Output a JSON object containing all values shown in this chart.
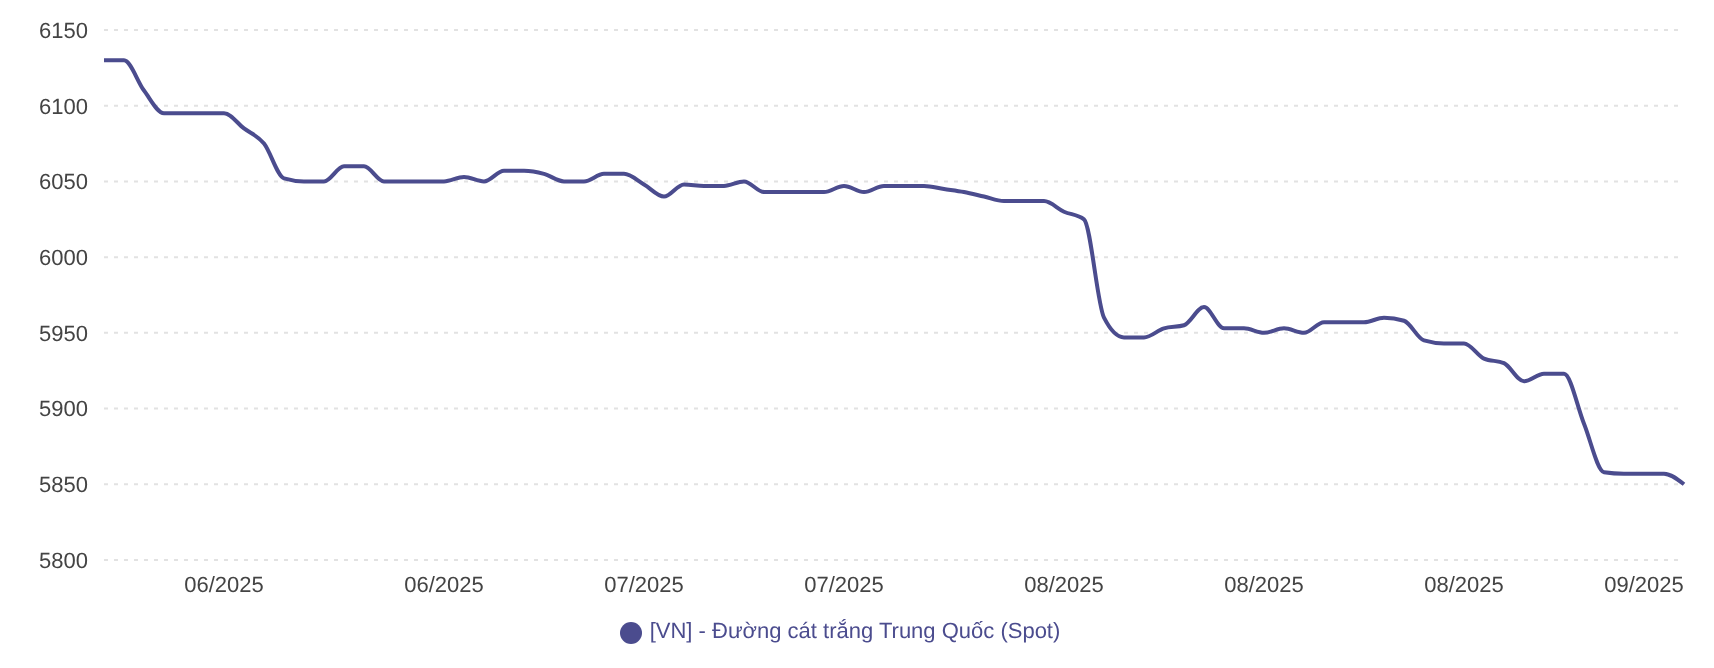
{
  "chart_data": {
    "type": "line",
    "categories": [
      null,
      null,
      null,
      null,
      null,
      null,
      "06/2025",
      null,
      null,
      null,
      null,
      null,
      null,
      null,
      null,
      null,
      null,
      "06/2025",
      null,
      null,
      null,
      null,
      null,
      null,
      null,
      null,
      null,
      "07/2025",
      null,
      null,
      null,
      null,
      null,
      null,
      null,
      null,
      null,
      "07/2025",
      null,
      null,
      null,
      null,
      null,
      null,
      null,
      null,
      null,
      null,
      "08/2025",
      null,
      null,
      null,
      null,
      null,
      null,
      null,
      null,
      null,
      "08/2025",
      null,
      null,
      null,
      null,
      null,
      null,
      null,
      null,
      null,
      "08/2025",
      null,
      null,
      null,
      null,
      null,
      null,
      null,
      null,
      "09/2025",
      null,
      null
    ],
    "series": [
      {
        "name": "[VN] - Đường cát trắng Trung Quốc (Spot)",
        "color": "#4b4c8e",
        "values": [
          6130,
          6130,
          6110,
          6095,
          6095,
          6095,
          6095,
          6085,
          6075,
          6052,
          6050,
          6050,
          6060,
          6060,
          6050,
          6050,
          6050,
          6050,
          6053,
          6050,
          6057,
          6057,
          6055,
          6050,
          6050,
          6055,
          6055,
          6048,
          6040,
          6048,
          6047,
          6047,
          6050,
          6043,
          6043,
          6043,
          6043,
          6047,
          6043,
          6047,
          6047,
          6047,
          6045,
          6043,
          6040,
          6037,
          6037,
          6037,
          6030,
          6025,
          5960,
          5947,
          5947,
          5953,
          5955,
          5967,
          5953,
          5953,
          5950,
          5953,
          5950,
          5957,
          5957,
          5957,
          5960,
          5958,
          5945,
          5943,
          5943,
          5933,
          5930,
          5918,
          5923,
          5923,
          5890,
          5858,
          5857,
          5857,
          5857,
          5850
        ]
      }
    ],
    "ylim": [
      5800,
      6150
    ],
    "yticks": [
      5800,
      5850,
      5900,
      5950,
      6000,
      6050,
      6100,
      6150
    ],
    "grid": "y",
    "legend": "bottom",
    "marker": "none",
    "line_style": "solid"
  }
}
